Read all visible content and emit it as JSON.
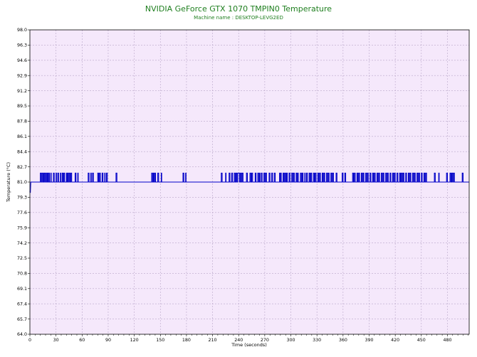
{
  "chart_data": {
    "type": "line",
    "title": "NVIDIA GeForce GTX 1070 TMPIN0 Temperature",
    "subtitle": "Machine name : DESKTOP-LEVG2ED",
    "xlabel": "Time (seconds)",
    "ylabel": "Temperature (°C)",
    "xlim": [
      0,
      505
    ],
    "ylim": [
      64.0,
      98.0
    ],
    "xticks": [
      0,
      30,
      60,
      90,
      120,
      150,
      180,
      210,
      240,
      270,
      300,
      330,
      360,
      390,
      420,
      450,
      480
    ],
    "yticks": [
      "64.0",
      "65.7",
      "67.4",
      "69.1",
      "70.8",
      "72.5",
      "74.2",
      "75.9",
      "77.6",
      "79.3",
      "81.0",
      "82.7",
      "84.4",
      "86.1",
      "87.8",
      "89.5",
      "91.2",
      "92.9",
      "94.6",
      "96.3",
      "98.0"
    ],
    "grid": true,
    "colors": {
      "plot_background": "#f5e8fb",
      "grid": "#b9a6c9",
      "line": "#0000c8",
      "title": "#1f7f1f"
    },
    "baseline_value": 81.0,
    "high_value": 82.0,
    "start": [
      [
        0,
        80.0
      ],
      [
        0.5,
        79.8
      ],
      [
        1,
        81.0
      ]
    ],
    "series": [
      {
        "high_intervals": [
          [
            12,
            13
          ],
          [
            14,
            15
          ],
          [
            16,
            17
          ],
          [
            18,
            19
          ],
          [
            20,
            21
          ],
          [
            22,
            22.5
          ],
          [
            24,
            24.5
          ],
          [
            27,
            28
          ],
          [
            30,
            30.5
          ],
          [
            32,
            33
          ],
          [
            35,
            35.5
          ],
          [
            37,
            38
          ],
          [
            39,
            40
          ],
          [
            42,
            42.5
          ],
          [
            43,
            44
          ],
          [
            45,
            46
          ],
          [
            47,
            48
          ],
          [
            52,
            53
          ],
          [
            55,
            55.5
          ],
          [
            67,
            68
          ],
          [
            70,
            70.5
          ],
          [
            72,
            73
          ],
          [
            78,
            79
          ],
          [
            80,
            81
          ],
          [
            83,
            84
          ],
          [
            86,
            86.5
          ],
          [
            88,
            89
          ],
          [
            99,
            100
          ],
          [
            140,
            141
          ],
          [
            142,
            143
          ],
          [
            144,
            144.5
          ],
          [
            147,
            148
          ],
          [
            151,
            151.5
          ],
          [
            176,
            177
          ],
          [
            179,
            179.5
          ],
          [
            220,
            221
          ],
          [
            225,
            225.5
          ],
          [
            229,
            230
          ],
          [
            232,
            233
          ],
          [
            235,
            236
          ],
          [
            237,
            238
          ],
          [
            239,
            241
          ],
          [
            242,
            243
          ],
          [
            244,
            245
          ],
          [
            249,
            250
          ],
          [
            253,
            254
          ],
          [
            255,
            256
          ],
          [
            259,
            260
          ],
          [
            262,
            263
          ],
          [
            264,
            264.5
          ],
          [
            266,
            267
          ],
          [
            269,
            270
          ],
          [
            271,
            272
          ],
          [
            275,
            276
          ],
          [
            278,
            279
          ],
          [
            281,
            282
          ],
          [
            287,
            287.5
          ],
          [
            288,
            289
          ],
          [
            291,
            292
          ],
          [
            293,
            294
          ],
          [
            295,
            296
          ],
          [
            298,
            299
          ],
          [
            301,
            302
          ],
          [
            303,
            304
          ],
          [
            306,
            307
          ],
          [
            308,
            308.5
          ],
          [
            311,
            312
          ],
          [
            313,
            314
          ],
          [
            316,
            316.5
          ],
          [
            318,
            319
          ],
          [
            321,
            322
          ],
          [
            323,
            324
          ],
          [
            326,
            327
          ],
          [
            328,
            329
          ],
          [
            331,
            332
          ],
          [
            333,
            334
          ],
          [
            336,
            337
          ],
          [
            338,
            339
          ],
          [
            341,
            342
          ],
          [
            343,
            344
          ],
          [
            346,
            347
          ],
          [
            348,
            349
          ],
          [
            352,
            353
          ],
          [
            359,
            360
          ],
          [
            362,
            363
          ],
          [
            371,
            372
          ],
          [
            373,
            374
          ],
          [
            376,
            377
          ],
          [
            378,
            379
          ],
          [
            381,
            382
          ],
          [
            383,
            384
          ],
          [
            386,
            387
          ],
          [
            388,
            389
          ],
          [
            391,
            392
          ],
          [
            394,
            395
          ],
          [
            396,
            397
          ],
          [
            399,
            400
          ],
          [
            401,
            402
          ],
          [
            404,
            405
          ],
          [
            406,
            407
          ],
          [
            409,
            410
          ],
          [
            411,
            412
          ],
          [
            414,
            415
          ],
          [
            417,
            418
          ],
          [
            419,
            420
          ],
          [
            422,
            423
          ],
          [
            425,
            426
          ],
          [
            427,
            428
          ],
          [
            429,
            430
          ],
          [
            432,
            433
          ],
          [
            435,
            436
          ],
          [
            437,
            438
          ],
          [
            440,
            441
          ],
          [
            442,
            443
          ],
          [
            445,
            446
          ],
          [
            447,
            448
          ],
          [
            450,
            451
          ],
          [
            453,
            454
          ],
          [
            455,
            456
          ],
          [
            465,
            466
          ],
          [
            470,
            470.5
          ],
          [
            479,
            480
          ],
          [
            483,
            484
          ],
          [
            485,
            486
          ],
          [
            487,
            488
          ],
          [
            497,
            498
          ]
        ],
        "x_end": 505
      }
    ]
  }
}
